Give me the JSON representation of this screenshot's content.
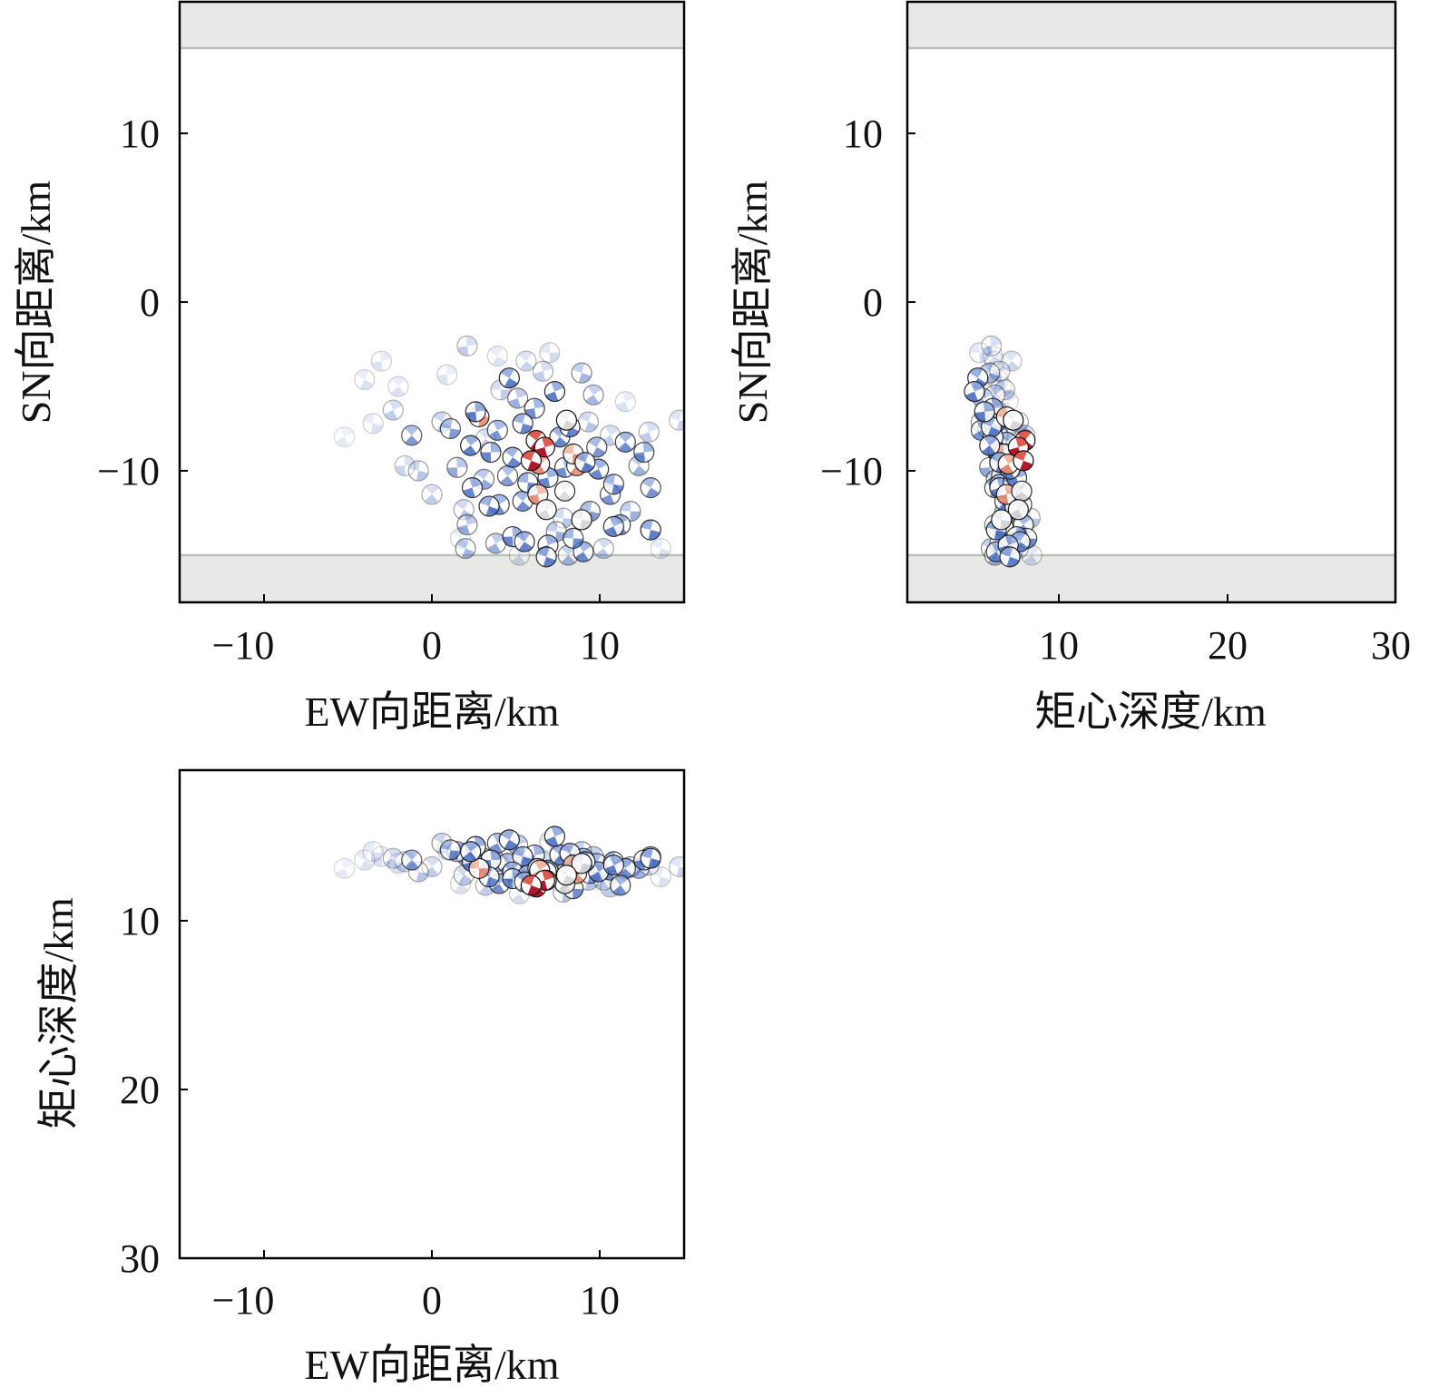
{
  "chart_data": [
    {
      "id": "map-view",
      "type": "scatter",
      "xlabel": "EW向距离/km",
      "ylabel": "SN向距离/km",
      "xlim": [
        -15,
        15
      ],
      "ylim": [
        -18,
        18
      ],
      "xticks": [
        -10,
        0,
        10
      ],
      "yticks": [
        10,
        0,
        -10
      ],
      "xtick_labels": [
        "−10",
        "0",
        "10"
      ],
      "ytick_labels": [
        "10",
        "0",
        "−10"
      ],
      "shaded_bands_y": [
        [
          15.2,
          18
        ],
        [
          -18,
          -15.2
        ]
      ],
      "grid": false
    },
    {
      "id": "depth-sn-view",
      "type": "scatter",
      "xlabel": "矩心深度/km",
      "ylabel": "SN向距离/km",
      "xlim": [
        1,
        30
      ],
      "ylim": [
        -18,
        18
      ],
      "xticks": [
        10,
        20,
        30
      ],
      "yticks": [
        10,
        0,
        -10
      ],
      "xtick_labels": [
        "10",
        "20",
        "30"
      ],
      "ytick_labels": [
        "10",
        "0",
        "−10"
      ],
      "shaded_bands_y": [
        [
          15.2,
          18
        ],
        [
          -18,
          -15.2
        ]
      ],
      "grid": false
    },
    {
      "id": "ew-depth-view",
      "type": "scatter",
      "xlabel": "EW向距离/km",
      "ylabel": "矩心深度/km",
      "xlim": [
        -15,
        15
      ],
      "ylim": [
        1,
        30
      ],
      "y_inverted": true,
      "xticks": [
        -10,
        0,
        10
      ],
      "yticks": [
        10,
        20,
        30
      ],
      "xtick_labels": [
        "−10",
        "0",
        "10"
      ],
      "ytick_labels": [
        "10",
        "20",
        "30"
      ],
      "grid": false
    }
  ],
  "events": [
    {
      "x": 2.8,
      "y": -6.8,
      "d": 6.9,
      "c": "red-light",
      "a": 0.9
    },
    {
      "x": 6.2,
      "y": -8.2,
      "d": 8.0,
      "c": "red",
      "a": 1.0
    },
    {
      "x": 6.7,
      "y": -8.6,
      "d": 7.6,
      "c": "red",
      "a": 1.0
    },
    {
      "x": 5.9,
      "y": -9.4,
      "d": 7.9,
      "c": "red",
      "a": 1.0
    },
    {
      "x": 6.4,
      "y": -9.6,
      "d": 7.0,
      "c": "red-light",
      "a": 0.95
    },
    {
      "x": 8.4,
      "y": -9.0,
      "d": 6.7,
      "c": "red-light",
      "a": 0.9
    },
    {
      "x": 8.6,
      "y": -9.7,
      "d": 7.2,
      "c": "red-light",
      "a": 0.85
    },
    {
      "x": 6.3,
      "y": -11.4,
      "d": 6.9,
      "c": "red-light",
      "a": 0.9
    },
    {
      "x": 8.0,
      "y": -7.0,
      "d": 7.3,
      "c": "white",
      "a": 1.0
    },
    {
      "x": 6.8,
      "y": -12.3,
      "d": 7.6,
      "c": "white",
      "a": 0.95
    },
    {
      "x": 8.9,
      "y": -12.9,
      "d": 6.6,
      "c": "white",
      "a": 0.95
    },
    {
      "x": 7.9,
      "y": -11.2,
      "d": 7.8,
      "c": "white",
      "a": 0.9
    },
    {
      "x": 2.6,
      "y": -6.5,
      "d": 5.6,
      "c": "blue",
      "a": 0.9
    },
    {
      "x": 4.6,
      "y": -4.5,
      "d": 5.2,
      "c": "blue",
      "a": 0.9
    },
    {
      "x": 7.3,
      "y": -5.3,
      "d": 5.0,
      "c": "blue",
      "a": 0.9
    },
    {
      "x": 5.4,
      "y": -7.2,
      "d": 6.2,
      "c": "blue",
      "a": 0.85
    },
    {
      "x": 2.3,
      "y": -8.5,
      "d": 5.9,
      "c": "blue",
      "a": 0.9
    },
    {
      "x": 3.5,
      "y": -8.9,
      "d": 6.4,
      "c": "blue",
      "a": 0.85
    },
    {
      "x": 4.8,
      "y": -9.2,
      "d": 7.1,
      "c": "blue",
      "a": 0.85
    },
    {
      "x": 2.4,
      "y": -11.0,
      "d": 6.5,
      "c": "blue",
      "a": 0.85
    },
    {
      "x": 3.4,
      "y": -12.1,
      "d": 7.4,
      "c": "blue",
      "a": 0.85
    },
    {
      "x": 4.0,
      "y": -12.0,
      "d": 7.8,
      "c": "blue",
      "a": 0.8
    },
    {
      "x": 5.7,
      "y": -10.7,
      "d": 7.3,
      "c": "blue",
      "a": 0.85
    },
    {
      "x": 5.4,
      "y": -11.8,
      "d": 6.8,
      "c": "blue",
      "a": 0.8
    },
    {
      "x": 6.9,
      "y": -10.4,
      "d": 7.5,
      "c": "blue",
      "a": 0.85
    },
    {
      "x": 9.1,
      "y": -9.5,
      "d": 6.5,
      "c": "blue",
      "a": 0.9
    },
    {
      "x": 9.9,
      "y": -9.9,
      "d": 7.1,
      "c": "blue",
      "a": 0.85
    },
    {
      "x": 10.8,
      "y": -10.8,
      "d": 6.5,
      "c": "blue",
      "a": 0.8
    },
    {
      "x": 11.5,
      "y": -8.3,
      "d": 6.9,
      "c": "blue",
      "a": 0.8
    },
    {
      "x": 12.6,
      "y": -8.9,
      "d": 6.4,
      "c": "blue",
      "a": 0.8
    },
    {
      "x": 13.0,
      "y": -11.0,
      "d": 6.2,
      "c": "blue",
      "a": 0.75
    },
    {
      "x": 10.8,
      "y": -13.3,
      "d": 6.7,
      "c": "blue",
      "a": 0.85
    },
    {
      "x": 13.0,
      "y": -13.5,
      "d": 6.3,
      "c": "blue",
      "a": 0.9
    },
    {
      "x": 11.2,
      "y": -13.2,
      "d": 7.9,
      "c": "blue",
      "a": 0.8
    },
    {
      "x": 4.8,
      "y": -13.9,
      "d": 7.5,
      "c": "blue",
      "a": 0.85
    },
    {
      "x": 5.5,
      "y": -14.2,
      "d": 7.7,
      "c": "blue",
      "a": 0.85
    },
    {
      "x": 6.9,
      "y": -14.4,
      "d": 7.0,
      "c": "blue",
      "a": 0.85
    },
    {
      "x": 6.8,
      "y": -15.1,
      "d": 7.1,
      "c": "blue",
      "a": 0.9
    },
    {
      "x": 9.0,
      "y": -14.8,
      "d": 6.3,
      "c": "blue",
      "a": 0.8
    },
    {
      "x": 8.4,
      "y": -14.0,
      "d": 8.1,
      "c": "blue",
      "a": 0.8
    },
    {
      "x": 7.6,
      "y": -8.0,
      "d": 6.1,
      "c": "blue",
      "a": 0.85
    },
    {
      "x": 7.9,
      "y": -9.8,
      "d": 7.2,
      "c": "blue",
      "a": 0.8
    },
    {
      "x": 8.2,
      "y": -7.4,
      "d": 6.0,
      "c": "blue",
      "a": 0.85
    },
    {
      "x": 3.9,
      "y": -7.6,
      "d": 5.4,
      "c": "blue",
      "a": 0.75
    },
    {
      "x": 1.1,
      "y": -7.5,
      "d": 5.8,
      "c": "blue",
      "a": 0.7
    },
    {
      "x": -1.2,
      "y": -7.9,
      "d": 6.4,
      "c": "blue",
      "a": 0.7
    },
    {
      "x": 6.1,
      "y": -6.3,
      "d": 6.1,
      "c": "blue",
      "a": 0.8
    },
    {
      "x": 9.8,
      "y": -8.6,
      "d": 6.6,
      "c": "blue",
      "a": 0.75
    },
    {
      "x": 10.6,
      "y": -11.4,
      "d": 7.0,
      "c": "blue",
      "a": 0.75
    },
    {
      "x": 9.4,
      "y": -12.4,
      "d": 7.2,
      "c": "blue",
      "a": 0.7
    },
    {
      "x": 4.5,
      "y": -10.3,
      "d": 6.6,
      "c": "blue",
      "a": 0.7
    },
    {
      "x": 1.5,
      "y": -9.8,
      "d": 5.9,
      "c": "blue",
      "a": 0.6
    },
    {
      "x": 3.1,
      "y": -10.5,
      "d": 6.3,
      "c": "blue",
      "a": 0.6
    },
    {
      "x": 5.1,
      "y": -5.7,
      "d": 5.5,
      "c": "blue",
      "a": 0.55
    },
    {
      "x": 8.9,
      "y": -4.2,
      "d": 5.9,
      "c": "blue",
      "a": 0.5
    },
    {
      "x": 9.6,
      "y": -5.5,
      "d": 6.2,
      "c": "blue",
      "a": 0.5
    },
    {
      "x": 11.8,
      "y": -12.4,
      "d": 6.8,
      "c": "blue",
      "a": 0.55
    },
    {
      "x": 12.3,
      "y": -9.7,
      "d": 6.9,
      "c": "blue",
      "a": 0.55
    },
    {
      "x": 2.1,
      "y": -13.2,
      "d": 6.2,
      "c": "blue",
      "a": 0.55
    },
    {
      "x": 2.0,
      "y": -14.6,
      "d": 6.0,
      "c": "blue",
      "a": 0.5
    },
    {
      "x": 3.8,
      "y": -14.3,
      "d": 6.5,
      "c": "blue",
      "a": 0.55
    },
    {
      "x": 7.4,
      "y": -13.6,
      "d": 6.9,
      "c": "blue",
      "a": 0.55
    },
    {
      "x": 8.1,
      "y": -15.0,
      "d": 6.2,
      "c": "blue",
      "a": 0.5
    },
    {
      "x": 2.1,
      "y": -2.6,
      "d": 6.0,
      "c": "blue",
      "a": 0.35
    },
    {
      "x": 0.6,
      "y": -7.1,
      "d": 5.4,
      "c": "blue",
      "a": 0.45
    },
    {
      "x": -2.3,
      "y": -6.4,
      "d": 6.3,
      "c": "blue",
      "a": 0.35
    },
    {
      "x": -0.8,
      "y": -10.0,
      "d": 7.1,
      "c": "blue",
      "a": 0.4
    },
    {
      "x": 0.0,
      "y": -11.4,
      "d": 6.8,
      "c": "blue",
      "a": 0.35
    },
    {
      "x": -1.6,
      "y": -9.7,
      "d": 6.5,
      "c": "blue",
      "a": 0.3
    },
    {
      "x": 1.9,
      "y": -12.3,
      "d": 7.3,
      "c": "blue",
      "a": 0.4
    },
    {
      "x": 12.9,
      "y": -7.7,
      "d": 6.7,
      "c": "blue",
      "a": 0.35
    },
    {
      "x": 14.7,
      "y": -7.0,
      "d": 6.8,
      "c": "blue",
      "a": 0.3
    },
    {
      "x": 10.2,
      "y": -14.6,
      "d": 7.6,
      "c": "blue",
      "a": 0.4
    },
    {
      "x": 4.1,
      "y": -5.2,
      "d": 6.8,
      "c": "blue",
      "a": 0.35
    },
    {
      "x": 5.6,
      "y": -3.5,
      "d": 7.2,
      "c": "blue",
      "a": 0.3
    },
    {
      "x": 6.6,
      "y": -4.1,
      "d": 6.5,
      "c": "blue",
      "a": 0.35
    },
    {
      "x": 9.3,
      "y": -7.1,
      "d": 7.6,
      "c": "blue",
      "a": 0.4
    },
    {
      "x": 10.6,
      "y": -7.9,
      "d": 8.0,
      "c": "blue",
      "a": 0.35
    },
    {
      "x": 7.8,
      "y": -12.8,
      "d": 8.3,
      "c": "blue",
      "a": 0.4
    },
    {
      "x": 3.2,
      "y": -8.1,
      "d": 7.9,
      "c": "blue",
      "a": 0.35
    },
    {
      "x": -3.0,
      "y": -3.5,
      "d": 6.2,
      "c": "blue",
      "a": 0.2
    },
    {
      "x": -4.0,
      "y": -4.6,
      "d": 6.4,
      "c": "blue",
      "a": 0.2
    },
    {
      "x": -5.2,
      "y": -8.0,
      "d": 6.9,
      "c": "blue",
      "a": 0.15
    },
    {
      "x": -3.5,
      "y": -7.2,
      "d": 5.9,
      "c": "blue",
      "a": 0.2
    },
    {
      "x": -2.0,
      "y": -5.0,
      "d": 6.6,
      "c": "blue",
      "a": 0.2
    },
    {
      "x": 0.9,
      "y": -4.3,
      "d": 5.8,
      "c": "blue",
      "a": 0.2
    },
    {
      "x": 3.9,
      "y": -3.2,
      "d": 6.1,
      "c": "blue",
      "a": 0.2
    },
    {
      "x": 11.5,
      "y": -5.9,
      "d": 7.0,
      "c": "blue",
      "a": 0.2
    },
    {
      "x": 13.6,
      "y": -14.6,
      "d": 7.4,
      "c": "blue",
      "a": 0.2
    },
    {
      "x": 5.2,
      "y": -15.0,
      "d": 8.4,
      "c": "blue",
      "a": 0.25
    },
    {
      "x": 7.0,
      "y": -3.0,
      "d": 5.3,
      "c": "blue",
      "a": 0.25
    },
    {
      "x": 1.7,
      "y": -14.0,
      "d": 7.8,
      "c": "blue",
      "a": 0.2
    }
  ]
}
